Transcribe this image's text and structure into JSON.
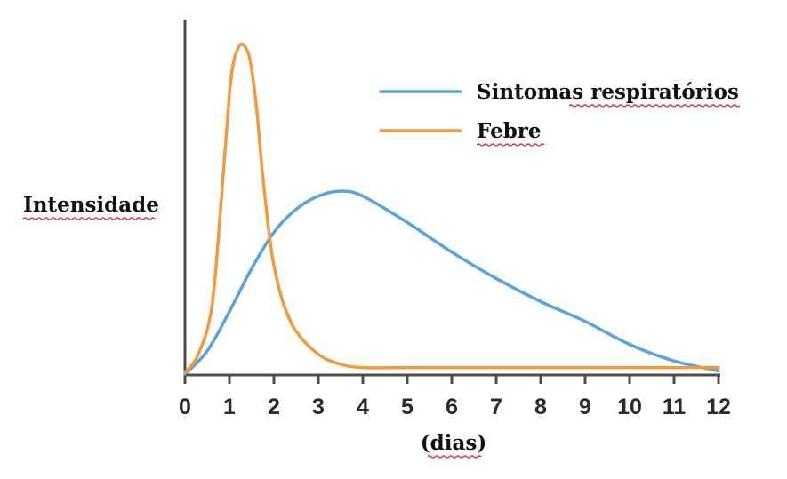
{
  "chart_data": {
    "type": "line",
    "xlabel": "(dias)",
    "ylabel": "Intensidade",
    "xlim": [
      0,
      12
    ],
    "ylim": [
      0,
      1
    ],
    "x_ticks": [
      "0",
      "1",
      "2",
      "3",
      "4",
      "5",
      "6",
      "7",
      "8",
      "9",
      "10",
      "11",
      "12"
    ],
    "grid": false,
    "legend_position": "top-right",
    "series": [
      {
        "name": "Sintomas respiratórios",
        "color": "#5aa3dc",
        "x": [
          0,
          0.5,
          1,
          1.5,
          2,
          2.5,
          3,
          3.5,
          4,
          5,
          6,
          7,
          8,
          9,
          10,
          11,
          12
        ],
        "y": [
          0,
          0.07,
          0.19,
          0.32,
          0.43,
          0.5,
          0.54,
          0.555,
          0.54,
          0.46,
          0.37,
          0.29,
          0.22,
          0.16,
          0.09,
          0.04,
          0.01
        ]
      },
      {
        "name": "Febre",
        "color": "#f39a3e",
        "x": [
          0,
          0.3,
          0.6,
          0.8,
          1,
          1.1,
          1.2,
          1.3,
          1.45,
          1.6,
          1.75,
          1.9,
          2,
          2.2,
          2.5,
          3,
          3.5,
          4,
          5,
          6,
          8,
          10,
          12
        ],
        "y": [
          0.005,
          0.06,
          0.2,
          0.5,
          0.85,
          0.95,
          0.99,
          1.0,
          0.96,
          0.82,
          0.6,
          0.42,
          0.33,
          0.22,
          0.13,
          0.06,
          0.03,
          0.02,
          0.02,
          0.02,
          0.02,
          0.02,
          0.02
        ]
      }
    ]
  }
}
